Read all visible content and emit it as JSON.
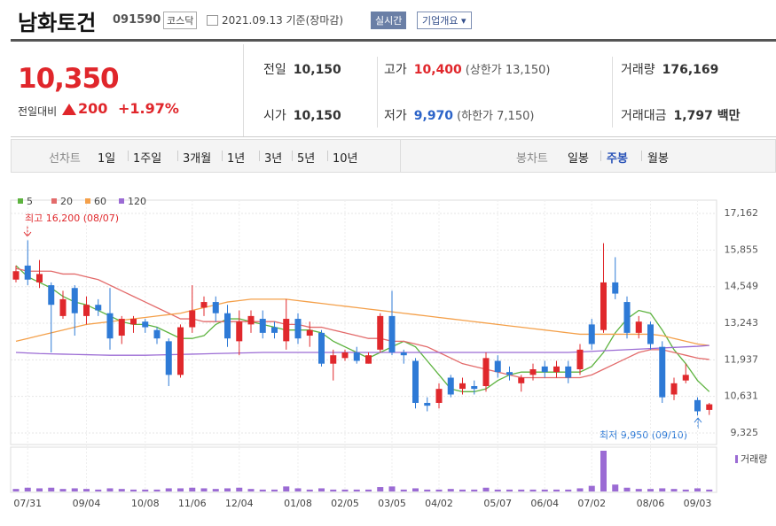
{
  "header": {
    "name": "남화토건",
    "code": "091590",
    "market": "코스닥",
    "date": "2021.09.13 기준(장마감)",
    "realtime": "실시간",
    "overview": "기업개요"
  },
  "price": {
    "current": "10,350",
    "change_label": "전일대비",
    "change": "200",
    "percent": "+1.97%"
  },
  "stats": [
    {
      "label": "전일",
      "value": "10,150"
    },
    {
      "label": "고가",
      "value": "10,400",
      "extra": "(상한가 13,150)"
    },
    {
      "label": "거래량",
      "value": "176,169"
    },
    {
      "label": "시가",
      "value": "10,150"
    },
    {
      "label": "저가",
      "value": "9,970",
      "extra": "(하한가 7,150)"
    },
    {
      "label": "거래대금",
      "value": "1,797 백만"
    }
  ],
  "tabs": {
    "line_label": "선차트",
    "periods": [
      "1일",
      "1주일",
      "3개월",
      "1년",
      "3년",
      "5년",
      "10년"
    ],
    "candle_label": "봉차트",
    "candle_periods": [
      "일봉",
      "주봉",
      "월봉"
    ],
    "active": "주봉"
  },
  "chart_data": {
    "type": "candlestick",
    "up_color": "#e0282c",
    "down_color": "#2e7ad6",
    "categories": [
      null,
      "07/31",
      null,
      null,
      null,
      null,
      "09/04",
      null,
      null,
      null,
      null,
      "10/08",
      null,
      null,
      null,
      "11/06",
      null,
      null,
      null,
      "12/04",
      null,
      null,
      null,
      null,
      "01/08",
      null,
      null,
      null,
      "02/05",
      null,
      null,
      null,
      "03/05",
      null,
      null,
      null,
      "04/02",
      null,
      null,
      null,
      null,
      "05/07",
      null,
      null,
      null,
      "06/04",
      null,
      null,
      null,
      "07/02",
      null,
      null,
      null,
      null,
      "08/06",
      null,
      null,
      null,
      "09/03",
      null
    ],
    "open": [
      14800,
      15300,
      14700,
      14600,
      13500,
      14500,
      13500,
      13900,
      13600,
      12800,
      13200,
      13300,
      13000,
      12600,
      11400,
      13100,
      13800,
      14000,
      13600,
      12600,
      13200,
      13400,
      13100,
      12600,
      13400,
      12800,
      12900,
      11800,
      12000,
      12200,
      11800,
      12300,
      13500,
      12200,
      11900,
      10400,
      10400,
      11300,
      10900,
      11000,
      11000,
      11900,
      11500,
      11100,
      11400,
      11700,
      11500,
      11700,
      11600,
      13200,
      13000,
      14700,
      14000,
      12900,
      13200,
      12400,
      10700,
      11200,
      10500,
      10150
    ],
    "high": [
      15300,
      16200,
      15500,
      14700,
      14400,
      14600,
      14200,
      14100,
      14500,
      13500,
      13500,
      13400,
      13100,
      12700,
      13200,
      14600,
      14200,
      14200,
      13900,
      13700,
      13700,
      13700,
      13300,
      14100,
      13600,
      13300,
      13000,
      12300,
      12300,
      12400,
      12200,
      13600,
      14400,
      12300,
      12000,
      10600,
      11100,
      11400,
      11300,
      11200,
      12200,
      12100,
      11700,
      11400,
      11800,
      11900,
      11900,
      11900,
      12500,
      13400,
      16100,
      15600,
      14200,
      13500,
      13300,
      12600,
      11300,
      11800,
      10600,
      10400
    ],
    "low": [
      14700,
      14600,
      14500,
      12200,
      13400,
      12800,
      13200,
      13500,
      12300,
      12500,
      12900,
      12900,
      12500,
      11000,
      11300,
      12900,
      13500,
      13300,
      12400,
      12100,
      12900,
      12700,
      12700,
      12300,
      12500,
      12400,
      11700,
      11200,
      11900,
      11800,
      11800,
      12200,
      12100,
      11800,
      10200,
      10100,
      10200,
      10600,
      10700,
      10700,
      10800,
      11300,
      11200,
      10800,
      11200,
      11300,
      11300,
      11100,
      11400,
      12300,
      12900,
      14100,
      12700,
      12700,
      12300,
      10400,
      10500,
      11100,
      9950,
      9970
    ],
    "close": [
      15100,
      14800,
      15000,
      13900,
      14100,
      13600,
      13900,
      13700,
      12700,
      13400,
      13400,
      13100,
      12700,
      11400,
      13100,
      13700,
      14000,
      13600,
      12700,
      13300,
      13500,
      12900,
      12900,
      13400,
      12700,
      13000,
      11800,
      12100,
      12200,
      11900,
      12100,
      13500,
      12200,
      12100,
      10400,
      10300,
      10900,
      10700,
      11100,
      10900,
      12000,
      11500,
      11400,
      11300,
      11600,
      11500,
      11700,
      11300,
      12300,
      12500,
      14700,
      14300,
      12900,
      13300,
      12500,
      10600,
      11100,
      11400,
      10100,
      10350
    ],
    "series": [
      {
        "name": "5",
        "color": "#5db33f",
        "values": [
          15300,
          14900,
          14700,
          14500,
          14200,
          14000,
          13900,
          13700,
          13500,
          13300,
          13200,
          13200,
          13100,
          12900,
          12700,
          12700,
          12800,
          13200,
          13400,
          13400,
          13300,
          13200,
          13100,
          13000,
          13000,
          13000,
          12900,
          12600,
          12400,
          12200,
          12000,
          12200,
          12400,
          12600,
          12400,
          11900,
          11400,
          10900,
          10800,
          10800,
          10900,
          11200,
          11400,
          11500,
          11500,
          11500,
          11500,
          11500,
          11500,
          11700,
          12200,
          12900,
          13400,
          13700,
          13600,
          13000,
          12300,
          11800,
          11200,
          10800
        ]
      },
      {
        "name": "20",
        "color": "#e36b6b",
        "values": [
          15200,
          15100,
          15100,
          15100,
          15000,
          15000,
          14900,
          14800,
          14600,
          14400,
          14200,
          14000,
          13800,
          13600,
          13400,
          13400,
          13300,
          13300,
          13300,
          13300,
          13300,
          13300,
          13300,
          13200,
          13200,
          13100,
          13100,
          13000,
          12900,
          12800,
          12700,
          12700,
          12600,
          12600,
          12500,
          12400,
          12200,
          12000,
          11800,
          11700,
          11600,
          11500,
          11400,
          11300,
          11300,
          11300,
          11300,
          11300,
          11300,
          11400,
          11600,
          11800,
          12000,
          12200,
          12300,
          12300,
          12200,
          12100,
          12000,
          11950
        ]
      },
      {
        "name": "60",
        "color": "#f4a04a",
        "values": [
          12600,
          12700,
          12800,
          12900,
          13000,
          13100,
          13200,
          13250,
          13300,
          13350,
          13400,
          13450,
          13500,
          13550,
          13600,
          13700,
          13800,
          13900,
          14000,
          14050,
          14100,
          14100,
          14100,
          14100,
          14050,
          14000,
          13950,
          13900,
          13850,
          13800,
          13750,
          13700,
          13650,
          13600,
          13550,
          13500,
          13450,
          13400,
          13350,
          13300,
          13250,
          13200,
          13150,
          13100,
          13050,
          13000,
          12950,
          12900,
          12850,
          12850,
          12850,
          12850,
          12850,
          12850,
          12850,
          12800,
          12700,
          12600,
          12500,
          12450
        ]
      },
      {
        "name": "120",
        "color": "#9b6bd4",
        "values": [
          12200,
          12180,
          12160,
          12150,
          12140,
          12130,
          12120,
          12110,
          12100,
          12100,
          12100,
          12100,
          12110,
          12120,
          12130,
          12140,
          12150,
          12160,
          12170,
          12180,
          12190,
          12200,
          12200,
          12200,
          12200,
          12200,
          12200,
          12200,
          12200,
          12200,
          12200,
          12200,
          12200,
          12200,
          12200,
          12200,
          12200,
          12200,
          12200,
          12200,
          12200,
          12200,
          12200,
          12200,
          12200,
          12200,
          12200,
          12200,
          12220,
          12240,
          12260,
          12280,
          12300,
          12320,
          12340,
          12360,
          12380,
          12400,
          12420,
          12450
        ]
      }
    ],
    "volume_label": "거래량",
    "volume_color": "#9b6bd4",
    "volume": [
      400000,
      600000,
      500000,
      600000,
      400000,
      500000,
      400000,
      300000,
      500000,
      400000,
      300000,
      300000,
      300000,
      500000,
      500000,
      600000,
      500000,
      400000,
      500000,
      600000,
      400000,
      300000,
      300000,
      800000,
      500000,
      300000,
      500000,
      300000,
      300000,
      300000,
      300000,
      700000,
      800000,
      300000,
      500000,
      300000,
      300000,
      400000,
      300000,
      300000,
      600000,
      300000,
      300000,
      300000,
      300000,
      300000,
      300000,
      300000,
      500000,
      900000,
      6500000,
      1100000,
      600000,
      400000,
      400000,
      500000,
      400000,
      300000,
      500000,
      300000
    ],
    "ylim": [
      9325,
      17162
    ],
    "yticks": [
      {
        "value": 17162,
        "label": "17,162"
      },
      {
        "value": 15855,
        "label": "15,855"
      },
      {
        "value": 14549,
        "label": "14,549"
      },
      {
        "value": 13243,
        "label": "13,243"
      },
      {
        "value": 11937,
        "label": "11,937"
      },
      {
        "value": 10631,
        "label": "10,631"
      },
      {
        "value": 9325,
        "label": "9,325"
      }
    ],
    "grid": true,
    "annotations": [
      {
        "text": "최고 16,200 (08/07)",
        "color": "#e0282c"
      },
      {
        "text": "최저 9,950 (09/10)",
        "color": "#2e7ad6"
      }
    ]
  }
}
